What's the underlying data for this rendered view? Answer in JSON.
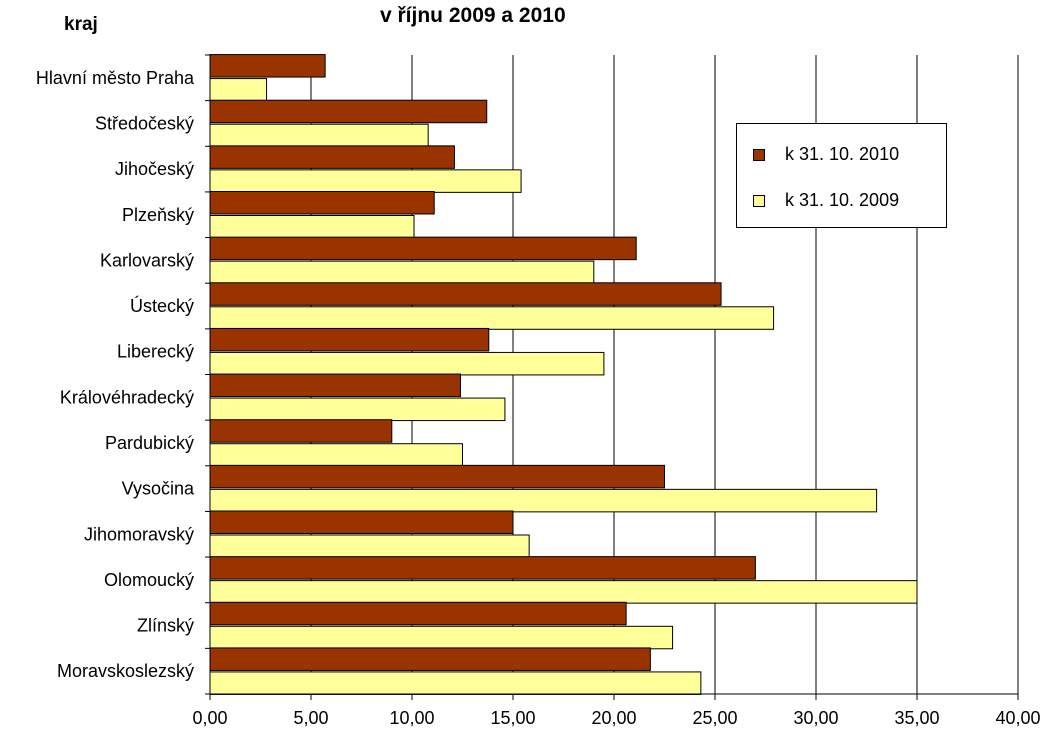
{
  "chart_data": {
    "type": "bar",
    "orientation": "horizontal",
    "title": "v říjnu 2009 a  2010",
    "xlabel": "",
    "ylabel": "kraj",
    "categories": [
      "Hlavní město Praha",
      "Středočeský",
      "Jihočeský",
      "Plzeňský",
      "Karlovarský",
      "Ústecký",
      "Liberecký",
      "Královéhradecký",
      "Pardubický",
      "Vysočina",
      "Jihomoravský",
      "Olomoucký",
      "Zlínský",
      "Moravskoslezský"
    ],
    "series": [
      {
        "name": "k 31. 10. 2010",
        "color": "#993300",
        "values": [
          5.7,
          13.7,
          12.1,
          11.1,
          21.1,
          25.3,
          13.8,
          12.4,
          9.0,
          22.5,
          15.0,
          27.0,
          20.6,
          21.8
        ]
      },
      {
        "name": "k 31. 10. 2009",
        "color": "#FFFF99",
        "values": [
          2.8,
          10.8,
          15.4,
          10.1,
          19.0,
          27.9,
          19.5,
          14.6,
          12.5,
          33.0,
          15.8,
          35.0,
          22.9,
          24.3
        ]
      }
    ],
    "xlim": [
      0,
      40
    ],
    "xticks": [
      "0,00",
      "5,00",
      "10,00",
      "15,00",
      "20,00",
      "25,00",
      "30,00",
      "35,00",
      "40,00"
    ],
    "grid": true,
    "legend": "top-right"
  }
}
